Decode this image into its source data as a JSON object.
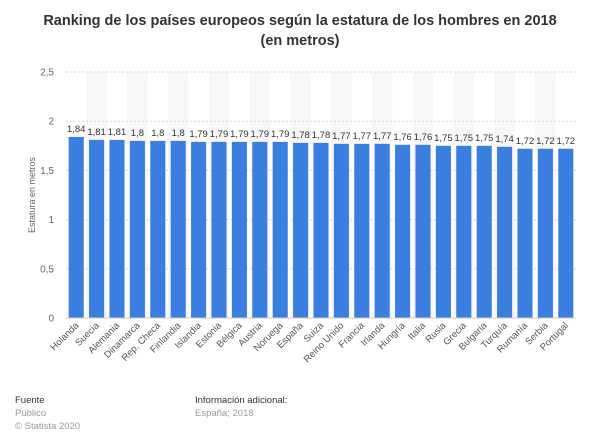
{
  "chart_data": {
    "type": "bar",
    "title": "Ranking de los países europeos según la estatura de los hombres en 2018 (en metros)",
    "xlabel": "",
    "ylabel": "Estatura en metros",
    "ylim": [
      0,
      2.5
    ],
    "yticks": [
      "0",
      "0,5",
      "1",
      "1,5",
      "2",
      "2,5"
    ],
    "ytick_values": [
      0,
      0.5,
      1,
      1.5,
      2,
      2.5
    ],
    "grid": true,
    "bar_color": "#3a7ee0",
    "categories": [
      "Holanda",
      "Suecia",
      "Alemania",
      "Dinamarca",
      "Rep. Checa",
      "Finlandia",
      "Islandia",
      "Estonia",
      "Bélgica",
      "Austria",
      "Noruega",
      "España",
      "Suiza",
      "Reino Unido",
      "Francia",
      "Irlanda",
      "Hungría",
      "Italia",
      "Rusia",
      "Grecia",
      "Bulgaria",
      "Turquía",
      "Rumanía",
      "Serbia",
      "Portugal"
    ],
    "values": [
      1.84,
      1.81,
      1.81,
      1.8,
      1.8,
      1.8,
      1.79,
      1.79,
      1.79,
      1.79,
      1.79,
      1.78,
      1.78,
      1.77,
      1.77,
      1.77,
      1.76,
      1.76,
      1.75,
      1.75,
      1.75,
      1.74,
      1.72,
      1.72,
      1.72
    ],
    "value_labels": [
      "1,84",
      "1,81",
      "1,81",
      "1,8",
      "1,8",
      "1,8",
      "1,79",
      "1,79",
      "1,79",
      "1,79",
      "1,79",
      "1,78",
      "1,78",
      "1,77",
      "1,77",
      "1,77",
      "1,76",
      "1,76",
      "1,75",
      "1,75",
      "1,75",
      "1,74",
      "1,72",
      "1,72",
      "1,72"
    ]
  },
  "footer": {
    "source_heading": "Fuente",
    "source_line1": "Público",
    "source_line2": "© Statista 2020",
    "info_heading": "Información adicional:",
    "info_line1": "España; 2018"
  }
}
